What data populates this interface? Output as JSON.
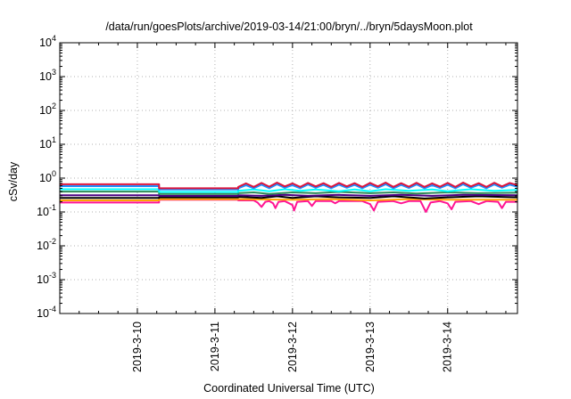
{
  "chart_data": {
    "type": "line",
    "title": "/data/run/goesPlots/archive/2019-03-14/21:00/bryn/../bryn/5daysMoon.plot",
    "xlabel": "Coordinated Universal Time (UTC)",
    "ylabel": "cSv/day",
    "yscale": "log",
    "ylim": [
      0.0001,
      10000
    ],
    "xlim": [
      9.0,
      14.9
    ],
    "grid": true,
    "legend": "none",
    "y_ticks": [
      {
        "base": "10",
        "exp": "-4",
        "value": 0.0001
      },
      {
        "base": "10",
        "exp": "-3",
        "value": 0.001
      },
      {
        "base": "10",
        "exp": "-2",
        "value": 0.01
      },
      {
        "base": "10",
        "exp": "-1",
        "value": 0.1
      },
      {
        "base": "10",
        "exp": "0",
        "value": 1
      },
      {
        "base": "10",
        "exp": "1",
        "value": 10
      },
      {
        "base": "10",
        "exp": "2",
        "value": 100
      },
      {
        "base": "10",
        "exp": "3",
        "value": 1000
      },
      {
        "base": "10",
        "exp": "4",
        "value": 10000
      }
    ],
    "x_ticks": [
      {
        "label": "2019-3-10",
        "value": 10.0
      },
      {
        "label": "2019-3-11",
        "value": 11.0
      },
      {
        "label": "2019-3-12",
        "value": 12.0
      },
      {
        "label": "2019-3-13",
        "value": 13.0
      },
      {
        "label": "2019-3-14",
        "value": 14.0
      }
    ],
    "series": [
      {
        "color": "#ff1493",
        "values": [
          [
            9.0,
            0.19
          ],
          [
            10.28,
            0.19
          ],
          [
            10.28,
            0.23
          ],
          [
            11.3,
            0.23
          ],
          [
            11.3,
            0.22
          ],
          [
            11.5,
            0.22
          ],
          [
            11.55,
            0.19
          ],
          [
            11.6,
            0.14
          ],
          [
            11.65,
            0.2
          ],
          [
            11.7,
            0.21
          ],
          [
            11.75,
            0.18
          ],
          [
            11.78,
            0.13
          ],
          [
            11.82,
            0.2
          ],
          [
            11.9,
            0.21
          ],
          [
            12.0,
            0.16
          ],
          [
            12.02,
            0.11
          ],
          [
            12.06,
            0.2
          ],
          [
            12.2,
            0.21
          ],
          [
            12.25,
            0.15
          ],
          [
            12.3,
            0.21
          ],
          [
            12.5,
            0.21
          ],
          [
            12.55,
            0.18
          ],
          [
            12.6,
            0.21
          ],
          [
            12.9,
            0.21
          ],
          [
            13.0,
            0.17
          ],
          [
            13.05,
            0.11
          ],
          [
            13.1,
            0.2
          ],
          [
            13.3,
            0.21
          ],
          [
            13.4,
            0.18
          ],
          [
            13.5,
            0.21
          ],
          [
            13.65,
            0.21
          ],
          [
            13.72,
            0.1
          ],
          [
            13.78,
            0.19
          ],
          [
            13.9,
            0.21
          ],
          [
            14.0,
            0.18
          ],
          [
            14.05,
            0.12
          ],
          [
            14.1,
            0.2
          ],
          [
            14.3,
            0.21
          ],
          [
            14.4,
            0.17
          ],
          [
            14.5,
            0.21
          ],
          [
            14.65,
            0.2
          ],
          [
            14.7,
            0.13
          ],
          [
            14.75,
            0.2
          ],
          [
            14.9,
            0.2
          ]
        ]
      },
      {
        "color": "#ffa500",
        "values": [
          [
            9.0,
            0.22
          ],
          [
            10.28,
            0.22
          ],
          [
            10.28,
            0.24
          ],
          [
            11.3,
            0.24
          ],
          [
            11.3,
            0.24
          ],
          [
            12.0,
            0.23
          ],
          [
            12.5,
            0.24
          ],
          [
            13.0,
            0.22
          ],
          [
            13.5,
            0.24
          ],
          [
            14.0,
            0.23
          ],
          [
            14.9,
            0.23
          ]
        ]
      },
      {
        "color": "#000000",
        "values": [
          [
            9.0,
            0.26
          ],
          [
            10.28,
            0.26
          ],
          [
            10.28,
            0.27
          ],
          [
            11.3,
            0.27
          ],
          [
            11.3,
            0.28
          ],
          [
            11.6,
            0.26
          ],
          [
            11.8,
            0.29
          ],
          [
            12.0,
            0.26
          ],
          [
            12.3,
            0.29
          ],
          [
            12.6,
            0.27
          ],
          [
            13.0,
            0.26
          ],
          [
            13.3,
            0.29
          ],
          [
            13.7,
            0.25
          ],
          [
            14.0,
            0.27
          ],
          [
            14.4,
            0.29
          ],
          [
            14.9,
            0.27
          ]
        ]
      },
      {
        "color": "#4b0082",
        "values": [
          [
            9.0,
            0.31
          ],
          [
            10.28,
            0.31
          ],
          [
            10.28,
            0.3
          ],
          [
            11.3,
            0.3
          ],
          [
            11.3,
            0.31
          ],
          [
            11.6,
            0.3
          ],
          [
            11.9,
            0.32
          ],
          [
            12.2,
            0.3
          ],
          [
            12.6,
            0.32
          ],
          [
            13.0,
            0.3
          ],
          [
            13.4,
            0.32
          ],
          [
            13.8,
            0.3
          ],
          [
            14.2,
            0.32
          ],
          [
            14.9,
            0.31
          ]
        ]
      },
      {
        "color": "#2e8b57",
        "values": [
          [
            9.0,
            0.4
          ],
          [
            10.28,
            0.4
          ],
          [
            10.28,
            0.34
          ],
          [
            11.3,
            0.34
          ],
          [
            11.3,
            0.36
          ],
          [
            11.5,
            0.38
          ],
          [
            11.7,
            0.34
          ],
          [
            12.0,
            0.38
          ],
          [
            12.3,
            0.36
          ],
          [
            12.6,
            0.39
          ],
          [
            13.0,
            0.36
          ],
          [
            13.3,
            0.38
          ],
          [
            13.6,
            0.35
          ],
          [
            14.0,
            0.38
          ],
          [
            14.4,
            0.36
          ],
          [
            14.9,
            0.37
          ]
        ]
      },
      {
        "color": "#00ffff",
        "values": [
          [
            9.0,
            0.47
          ],
          [
            10.28,
            0.47
          ],
          [
            10.28,
            0.39
          ],
          [
            11.3,
            0.39
          ],
          [
            11.3,
            0.42
          ],
          [
            11.5,
            0.46
          ],
          [
            11.7,
            0.41
          ],
          [
            11.9,
            0.47
          ],
          [
            12.1,
            0.42
          ],
          [
            12.3,
            0.46
          ],
          [
            12.6,
            0.41
          ],
          [
            12.8,
            0.46
          ],
          [
            13.0,
            0.41
          ],
          [
            13.2,
            0.47
          ],
          [
            13.5,
            0.42
          ],
          [
            13.8,
            0.46
          ],
          [
            14.0,
            0.41
          ],
          [
            14.3,
            0.47
          ],
          [
            14.6,
            0.42
          ],
          [
            14.9,
            0.45
          ]
        ]
      },
      {
        "color": "#1e90ff",
        "values": [
          [
            9.0,
            0.58
          ],
          [
            10.28,
            0.58
          ],
          [
            10.28,
            0.46
          ],
          [
            11.3,
            0.46
          ],
          [
            11.3,
            0.5
          ],
          [
            11.4,
            0.62
          ],
          [
            11.5,
            0.5
          ],
          [
            11.6,
            0.64
          ],
          [
            11.7,
            0.5
          ],
          [
            11.8,
            0.66
          ],
          [
            11.9,
            0.52
          ],
          [
            12.0,
            0.62
          ],
          [
            12.1,
            0.5
          ],
          [
            12.2,
            0.65
          ],
          [
            12.3,
            0.52
          ],
          [
            12.4,
            0.63
          ],
          [
            12.5,
            0.5
          ],
          [
            12.6,
            0.64
          ],
          [
            12.7,
            0.52
          ],
          [
            12.8,
            0.63
          ],
          [
            12.9,
            0.5
          ],
          [
            13.0,
            0.64
          ],
          [
            13.1,
            0.52
          ],
          [
            13.2,
            0.66
          ],
          [
            13.3,
            0.5
          ],
          [
            13.4,
            0.63
          ],
          [
            13.5,
            0.51
          ],
          [
            13.6,
            0.65
          ],
          [
            13.7,
            0.5
          ],
          [
            13.8,
            0.62
          ],
          [
            13.9,
            0.51
          ],
          [
            14.0,
            0.64
          ],
          [
            14.1,
            0.5
          ],
          [
            14.2,
            0.66
          ],
          [
            14.3,
            0.52
          ],
          [
            14.4,
            0.63
          ],
          [
            14.5,
            0.5
          ],
          [
            14.6,
            0.65
          ],
          [
            14.7,
            0.52
          ],
          [
            14.8,
            0.64
          ],
          [
            14.9,
            0.56
          ]
        ]
      },
      {
        "color": "#dc143c",
        "values": [
          [
            9.0,
            0.66
          ],
          [
            10.28,
            0.66
          ],
          [
            10.28,
            0.5
          ],
          [
            11.3,
            0.5
          ],
          [
            11.3,
            0.55
          ],
          [
            11.4,
            0.7
          ],
          [
            11.5,
            0.55
          ],
          [
            11.6,
            0.72
          ],
          [
            11.7,
            0.56
          ],
          [
            11.8,
            0.74
          ],
          [
            11.9,
            0.57
          ],
          [
            12.0,
            0.7
          ],
          [
            12.1,
            0.55
          ],
          [
            12.2,
            0.72
          ],
          [
            12.3,
            0.57
          ],
          [
            12.4,
            0.71
          ],
          [
            12.5,
            0.55
          ],
          [
            12.6,
            0.72
          ],
          [
            12.7,
            0.57
          ],
          [
            12.8,
            0.71
          ],
          [
            12.9,
            0.55
          ],
          [
            13.0,
            0.72
          ],
          [
            13.1,
            0.57
          ],
          [
            13.2,
            0.74
          ],
          [
            13.3,
            0.55
          ],
          [
            13.4,
            0.71
          ],
          [
            13.5,
            0.56
          ],
          [
            13.6,
            0.73
          ],
          [
            13.7,
            0.55
          ],
          [
            13.8,
            0.7
          ],
          [
            13.9,
            0.56
          ],
          [
            14.0,
            0.72
          ],
          [
            14.1,
            0.55
          ],
          [
            14.2,
            0.74
          ],
          [
            14.3,
            0.57
          ],
          [
            14.4,
            0.71
          ],
          [
            14.5,
            0.55
          ],
          [
            14.6,
            0.73
          ],
          [
            14.7,
            0.57
          ],
          [
            14.8,
            0.72
          ],
          [
            14.9,
            0.62
          ]
        ]
      }
    ]
  }
}
